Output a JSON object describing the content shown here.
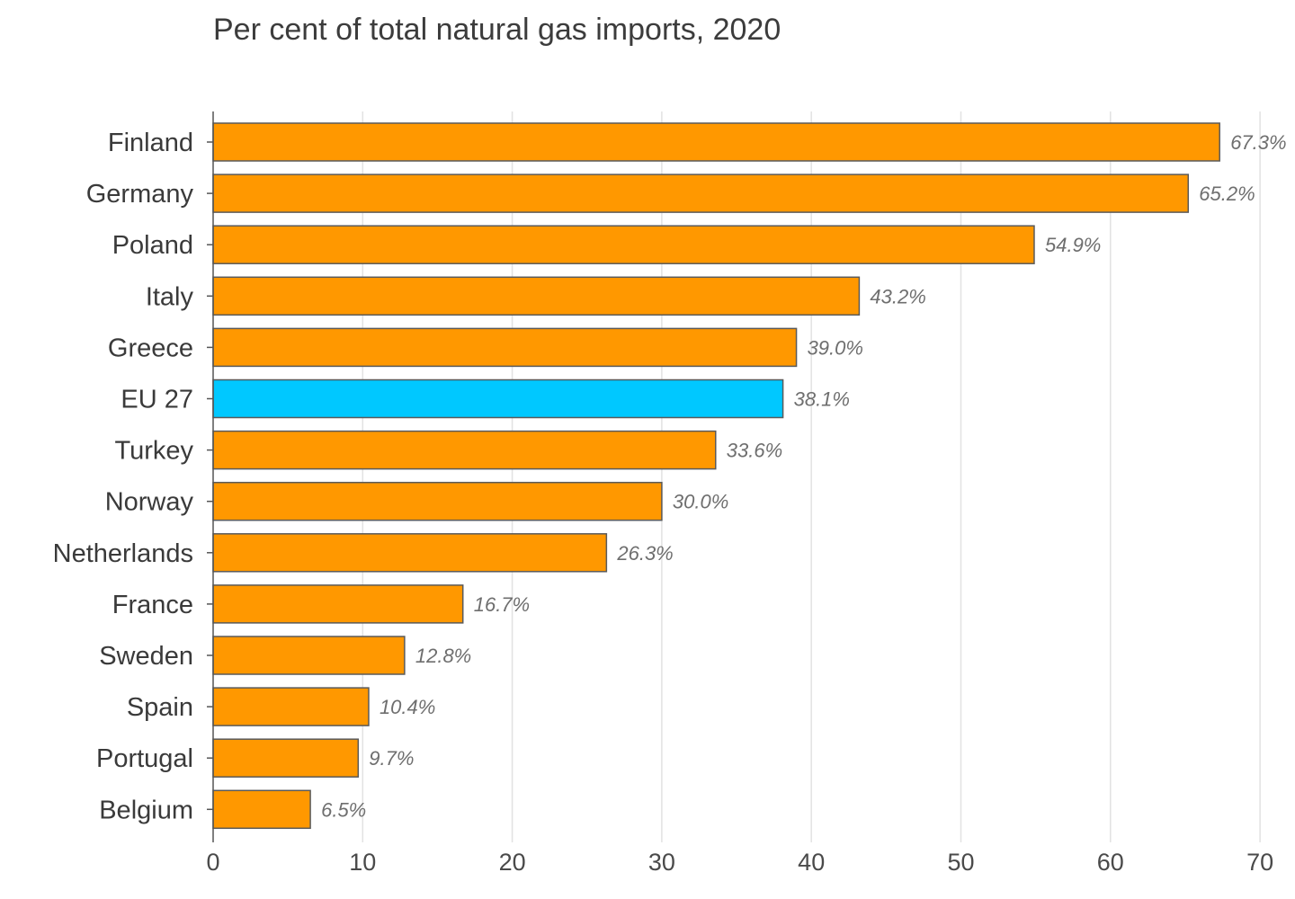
{
  "chart_data": {
    "type": "bar",
    "orientation": "horizontal",
    "subtitle": "Per cent of total natural gas imports, 2020",
    "categories": [
      "Finland",
      "Germany",
      "Poland",
      "Italy",
      "Greece",
      "EU 27",
      "Turkey",
      "Norway",
      "Netherlands",
      "France",
      "Sweden",
      "Spain",
      "Portugal",
      "Belgium"
    ],
    "values": [
      67.3,
      65.2,
      54.9,
      43.2,
      39.0,
      38.1,
      33.6,
      30.0,
      26.3,
      16.7,
      12.8,
      10.4,
      9.7,
      6.5
    ],
    "value_labels": [
      "67.3%",
      "65.2%",
      "54.9%",
      "43.2%",
      "39.0%",
      "38.1%",
      "33.6%",
      "30.0%",
      "26.3%",
      "16.7%",
      "12.8%",
      "10.4%",
      "9.7%",
      "6.5%"
    ],
    "highlight_category": "EU 27",
    "xlim": [
      0,
      70
    ],
    "x_ticks": [
      0,
      10,
      20,
      30,
      40,
      50,
      60,
      70
    ],
    "grid": "vertical",
    "colors": {
      "bar": "#ff9800",
      "highlight": "#00c8ff",
      "bar_stroke": "#5a5a5a",
      "grid": "#e2e2e2",
      "axis": "#555555"
    }
  }
}
